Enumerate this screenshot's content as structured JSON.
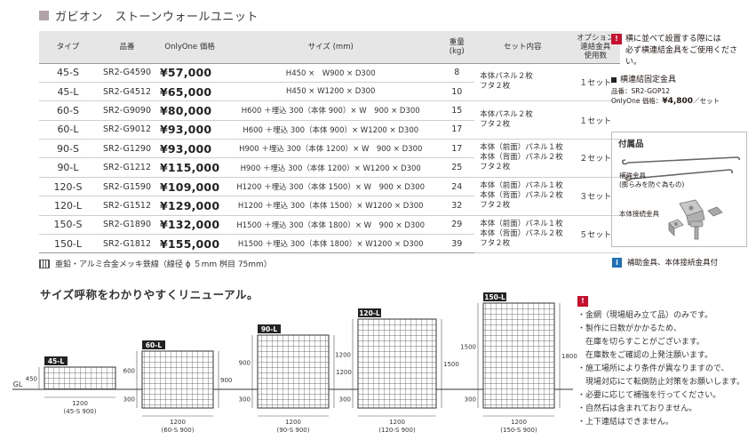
{
  "page_title": "ガビオン　ストーンウォールユニット",
  "table": {
    "headers": {
      "type": "タイプ",
      "code": "品番",
      "price": "OnlyOne 価格",
      "size": "サイズ (mm)",
      "weight_l1": "重量",
      "weight_l2": "(kg)",
      "set": "セット内容",
      "opt_l1": "オプション",
      "opt_l2": "連結金具",
      "opt_l3": "使用数"
    },
    "rows": [
      {
        "type": "45-S",
        "code": "SR2-G4590",
        "price": "¥57,000",
        "size": "H450 ×　W900 × D300",
        "weight": "8"
      },
      {
        "type": "45-L",
        "code": "SR2-G4512",
        "price": "¥65,000",
        "size": "H450 × W1200 × D300",
        "weight": "10"
      },
      {
        "type": "60-S",
        "code": "SR2-G9090",
        "price": "¥80,000",
        "size": "H600 ＋埋込 300（本体 900）× W　900 × D300",
        "weight": "15"
      },
      {
        "type": "60-L",
        "code": "SR2-G9012",
        "price": "¥93,000",
        "size": "H600 ＋埋込 300（本体 900）× W1200 × D300",
        "weight": "17"
      },
      {
        "type": "90-S",
        "code": "SR2-G1290",
        "price": "¥93,000",
        "size": "H900 ＋埋込 300（本体 1200）× W　900 × D300",
        "weight": "17"
      },
      {
        "type": "90-L",
        "code": "SR2-G1212",
        "price": "¥115,000",
        "size": "H900 ＋埋込 300（本体 1200）× W1200 × D300",
        "weight": "25"
      },
      {
        "type": "120-S",
        "code": "SR2-G1590",
        "price": "¥109,000",
        "size": "H1200 ＋埋込 300（本体 1500）× W　900 × D300",
        "weight": "24"
      },
      {
        "type": "120-L",
        "code": "SR2-G1512",
        "price": "¥129,000",
        "size": "H1200 ＋埋込 300（本体 1500）× W1200 × D300",
        "weight": "32"
      },
      {
        "type": "150-S",
        "code": "SR2-G1890",
        "price": "¥132,000",
        "size": "H1500 ＋埋込 300（本体 1800）× W　900 × D300",
        "weight": "29"
      },
      {
        "type": "150-L",
        "code": "SR2-G1812",
        "price": "¥155,000",
        "size": "H1500 ＋埋込 300（本体 1800）× W1200 × D300",
        "weight": "39"
      }
    ],
    "groups": [
      {
        "set_lines": [
          "本体パネル２枚",
          "フタ２枚"
        ],
        "opt": "１セット"
      },
      {
        "set_lines": [
          "本体パネル２枚",
          "フタ２枚"
        ],
        "opt": "１セット"
      },
      {
        "set_lines": [
          "本体（前面）パネル１枚",
          "本体（背面）パネル２枚",
          "フタ２枚"
        ],
        "opt": "２セット"
      },
      {
        "set_lines": [
          "本体（前面）パネル１枚",
          "本体（背面）パネル２枚",
          "フタ２枚"
        ],
        "opt": "３セット"
      },
      {
        "set_lines": [
          "本体（前面）パネル１枚",
          "本体（背面）パネル２枚",
          "フタ２枚"
        ],
        "opt": "５セット"
      }
    ]
  },
  "material_note": "亜鉛・アルミ合金メッキ鉄線（線径 ϕ ５mm 桝目 75mm）",
  "right_notes": {
    "warn_lines": [
      "横に並べて設置する際には",
      "必ず横連結金具をご使用くださ",
      "い。"
    ],
    "fitting_title": "横連結固定金具",
    "fitting_code": "品番：SR2-GOP12",
    "fitting_price_label": "OnlyOne 価格",
    "fitting_price": "¥4,800",
    "fitting_unit": "／セット"
  },
  "accessories": {
    "title": "付属品",
    "rod_label_l1": "補強金具",
    "rod_label_l2": "(膨らみを防ぐ為もの)",
    "clamp_label": "本体接続金具"
  },
  "info_note": "補助金具、本体接続金具付",
  "subheading": "サイズ呼称をわかりやすくリニューアル。",
  "diagram": {
    "gl": "GL",
    "units": [
      {
        "tag": "45-L",
        "left_dim": "450",
        "width": "1200",
        "caption": "(45-S 900)"
      },
      {
        "tag": "60-L",
        "left_dim": "600",
        "bottom_dim": "300",
        "right_dim": "900",
        "width": "1200",
        "caption": "(60-S 900)"
      },
      {
        "tag": "90-L",
        "left_dim": "900",
        "bottom_dim": "300",
        "right_dim": "1200",
        "width": "1200",
        "caption": "(90-S 900)"
      },
      {
        "tag": "120-L",
        "left_dim": "1200",
        "bottom_dim": "300",
        "right_dim": "1500",
        "width": "1200",
        "caption": "(120-S 900)"
      },
      {
        "tag": "150-L",
        "left_dim": "1500",
        "bottom_dim": "300",
        "right_dim": "1800",
        "width": "1200",
        "caption": "(150-S 900)"
      }
    ]
  },
  "bottom_notes": [
    "・金網（現場組み立て品）のみです。",
    "・製作に日数がかかるため、",
    "　在庫を切らすことがございます。",
    "　在庫数をご確認の上発注願います。",
    "・施工場所により条件が異なりますので、",
    "　現場対応にて転倒防止対策をお願いします。",
    "・必要に応じて補強を行ってください。",
    "・自然石は含まれておりません。",
    "・上下連結はできません。"
  ]
}
